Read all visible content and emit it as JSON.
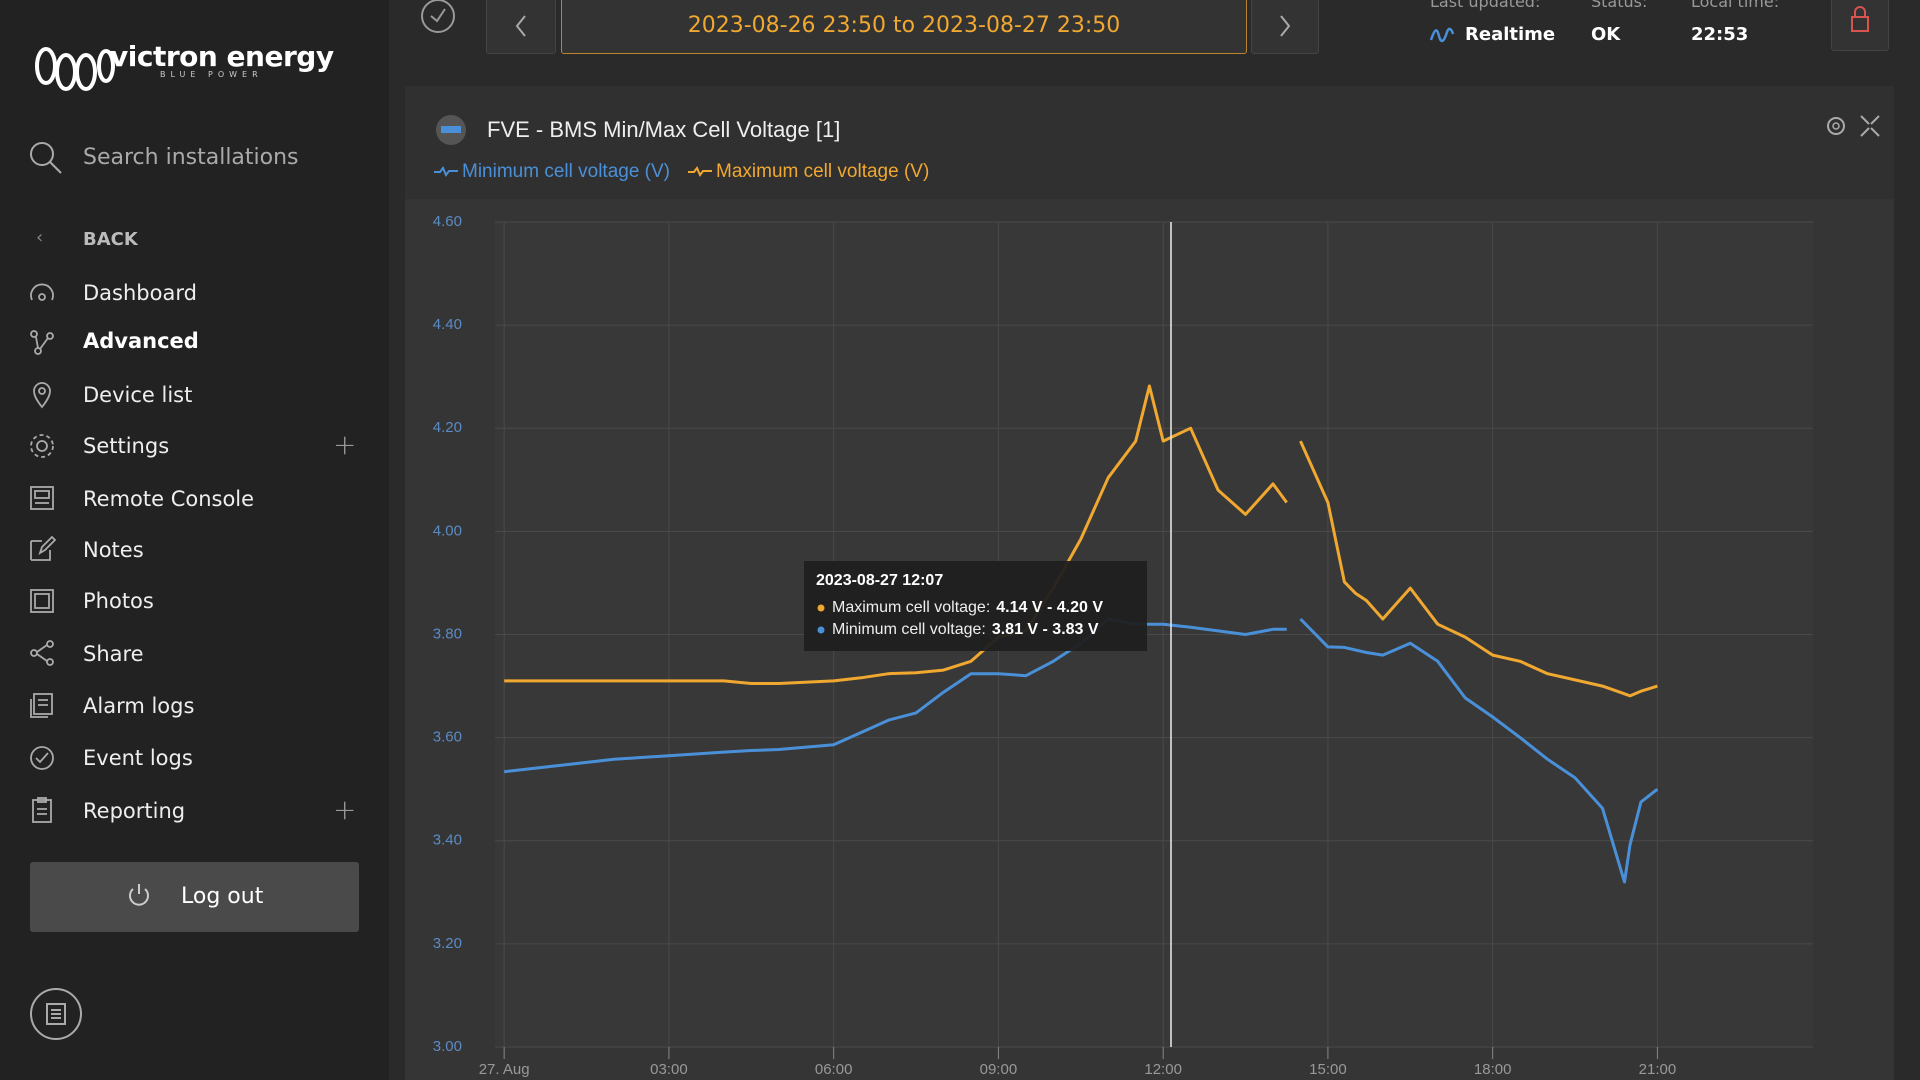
{
  "sidebar": {
    "brand": "victron energy",
    "tagline": "BLUE POWER",
    "search_placeholder": "Search installations",
    "back": "BACK",
    "nav": [
      "Dashboard",
      "Advanced",
      "Device list",
      "Settings",
      "Remote Console",
      "Notes",
      "Photos",
      "Share",
      "Alarm logs",
      "Event logs",
      "Reporting"
    ],
    "logout": "Log out"
  },
  "header": {
    "date_range": "2023-08-26 23:50 to 2023-08-27 23:50",
    "last_updated_label": "Last updated:",
    "last_updated_value": "Realtime",
    "status_label": "Status:",
    "status_value": "OK",
    "local_time_label": "Local time:",
    "local_time_value": "22:53"
  },
  "chart_data": {
    "type": "line",
    "title": "FVE - BMS Min/Max Cell Voltage [1]",
    "x": [
      0,
      1,
      2,
      3,
      4,
      4.5,
      5,
      6,
      6.5,
      7,
      7.5,
      8,
      8.5,
      9,
      9.5,
      10,
      10.5,
      11,
      11.5,
      11.75,
      12,
      12.5,
      13,
      13.5,
      14,
      14.25,
      14.35,
      14.5,
      15,
      15.3,
      15.5,
      15.7,
      16,
      16.5,
      17,
      17.5,
      18,
      18.5,
      19,
      19.5,
      20,
      20.4,
      20.5,
      20.7,
      21
    ],
    "series": [
      {
        "name": "Minimum cell voltage (V)",
        "color": "#4a90d9",
        "values": [
          3.534,
          3.546,
          3.558,
          3.565,
          3.572,
          3.575,
          3.577,
          3.586,
          3.61,
          3.634,
          3.648,
          3.688,
          3.724,
          3.724,
          3.72,
          3.748,
          3.783,
          3.83,
          3.82,
          3.82,
          3.82,
          3.814,
          3.807,
          3.8,
          3.81,
          3.81,
          null,
          3.83,
          3.776,
          3.775,
          3.77,
          3.765,
          3.76,
          3.783,
          3.748,
          3.677,
          3.64,
          3.6,
          3.558,
          3.522,
          3.463,
          3.32,
          3.392,
          3.475,
          3.5
        ]
      },
      {
        "name": "Maximum cell voltage (V)",
        "color": "#f0a830",
        "values": [
          3.71,
          3.71,
          3.71,
          3.71,
          3.71,
          3.705,
          3.705,
          3.71,
          3.716,
          3.724,
          3.726,
          3.731,
          3.748,
          3.795,
          3.807,
          3.89,
          3.985,
          4.104,
          4.175,
          4.282,
          4.175,
          4.2,
          4.08,
          4.033,
          4.092,
          4.056,
          null,
          4.175,
          4.056,
          3.902,
          3.88,
          3.866,
          3.83,
          3.89,
          3.82,
          3.795,
          3.76,
          3.748,
          3.724,
          3.712,
          3.7,
          3.685,
          3.681,
          3.69,
          3.7
        ]
      }
    ],
    "xlim": [
      -0.1667,
      23.833
    ],
    "xticks": [
      {
        "value": 0,
        "label": "27. Aug"
      },
      {
        "value": 3,
        "label": "03:00"
      },
      {
        "value": 6,
        "label": "06:00"
      },
      {
        "value": 9,
        "label": "09:00"
      },
      {
        "value": 12,
        "label": "12:00"
      },
      {
        "value": 15,
        "label": "15:00"
      },
      {
        "value": 18,
        "label": "18:00"
      },
      {
        "value": 21,
        "label": "21:00"
      }
    ],
    "ylim": [
      3.0,
      4.6
    ],
    "yticks": [
      {
        "value": 3.0,
        "label": "3.00"
      },
      {
        "value": 3.2,
        "label": "3.20"
      },
      {
        "value": 3.4,
        "label": "3.40"
      },
      {
        "value": 3.6,
        "label": "3.60"
      },
      {
        "value": 3.8,
        "label": "3.80"
      },
      {
        "value": 4.0,
        "label": "4.00"
      },
      {
        "value": 4.2,
        "label": "4.20"
      },
      {
        "value": 4.4,
        "label": "4.40"
      },
      {
        "value": 4.6,
        "label": "4.60"
      }
    ],
    "grid": true,
    "tooltip": {
      "title": "2023-08-27 12:07",
      "max_label": "Maximum cell voltage:",
      "max_value": "4.14 V - 4.20 V",
      "min_label": "Minimum cell voltage:",
      "min_value": "3.81 V - 3.83 V"
    }
  }
}
